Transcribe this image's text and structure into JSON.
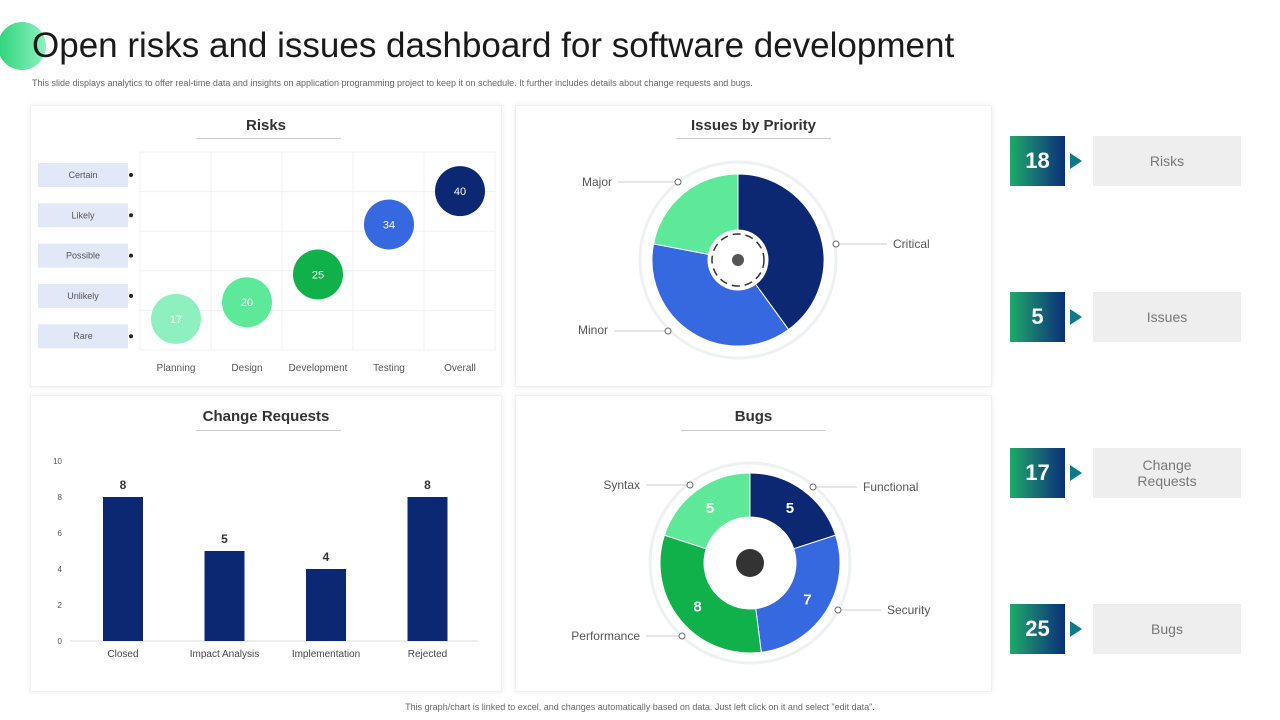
{
  "header": {
    "title": "Open risks and issues dashboard for software development",
    "subtitle": "This slide displays analytics to offer real-time data and insights on application programming project to keep it on schedule. It further includes details about change requests and bugs."
  },
  "footer": "This graph/chart is linked to excel, and changes automatically based on data. Just left click on it and select \"edit data\".",
  "colors": {
    "navy": "#0c2873",
    "blue": "#3668e0",
    "green": "#10b04a",
    "light_green": "#5ee89a",
    "pale_green": "#8ff0bf"
  },
  "chart_data": [
    {
      "type": "scatter",
      "title": "Risks",
      "categories": [
        "Planning",
        "Design",
        "Development",
        "Testing",
        "Overall"
      ],
      "likelihood_levels": [
        "Certain",
        "Likely",
        "Possible",
        "Unlikely",
        "Rare"
      ],
      "values": [
        17,
        20,
        25,
        34,
        40
      ]
    },
    {
      "type": "pie",
      "title": "Issues by Priority",
      "labels": [
        "Critical",
        "Minor",
        "Major"
      ],
      "values": [
        40,
        38,
        22
      ]
    },
    {
      "type": "bar",
      "title": "Change Requests",
      "categories": [
        "Closed",
        "Impact Analysis",
        "Implementation",
        "Rejected"
      ],
      "values": [
        8,
        5,
        4,
        8
      ],
      "ylim": [
        0,
        10
      ],
      "yticks": [
        0,
        2,
        4,
        6,
        8,
        10
      ]
    },
    {
      "type": "pie",
      "title": "Bugs",
      "labels": [
        "Functional",
        "Security",
        "Performance",
        "Syntax"
      ],
      "values": [
        5,
        7,
        8,
        5
      ]
    }
  ],
  "summary": [
    {
      "value": "18",
      "label": "Risks"
    },
    {
      "value": "5",
      "label": "Issues"
    },
    {
      "value": "17",
      "label": "Change Requests"
    },
    {
      "value": "25",
      "label": "Bugs"
    }
  ]
}
